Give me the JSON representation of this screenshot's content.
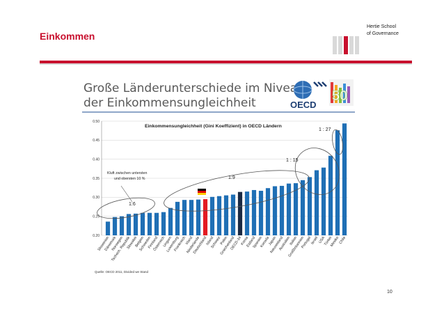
{
  "header": {
    "title": "Einkommen",
    "brand_line1": "Hertie School",
    "brand_line2": "of Governance",
    "page_number": "10"
  },
  "slide": {
    "title_line1": "Große Länderunterschiede im Niveau",
    "title_line2": "der Einkommensungleichheit",
    "logo_text": "OECD",
    "logo_number": "50",
    "source": "Quelle: OECD 2011, Divided we Stand"
  },
  "colors": {
    "accent": "#c8102e",
    "bar": "#1f6fb5",
    "germany": "#e31b23",
    "oecd": "#1a2a44"
  },
  "chart_data": {
    "type": "bar",
    "title": "Einkommensungleichheit (Gini Koeffizient) in OECD Ländern",
    "categories": [
      "Slowenien",
      "Dänemark",
      "Norwegen",
      "Tschech. Republik",
      "Slowakei",
      "Belgien",
      "Schweden",
      "Finnland",
      "Österreich",
      "Ungarn",
      "Luxemburg",
      "Frankreich",
      "Irland",
      "Niederlande",
      "Deutschland",
      "Island",
      "Schweiz",
      "Polen",
      "Griechenland",
      "OECD-34",
      "Korea",
      "Estland",
      "Spanien",
      "Kanada",
      "Japan",
      "Neuseeland",
      "Australien",
      "Italien",
      "Großbritannien",
      "Portugal",
      "Israel",
      "USA",
      "Türkei",
      "Mexiko",
      "Chile"
    ],
    "values": [
      0.236,
      0.248,
      0.25,
      0.256,
      0.257,
      0.259,
      0.259,
      0.259,
      0.261,
      0.272,
      0.288,
      0.293,
      0.293,
      0.294,
      0.295,
      0.301,
      0.303,
      0.305,
      0.307,
      0.314,
      0.315,
      0.319,
      0.317,
      0.324,
      0.329,
      0.33,
      0.336,
      0.337,
      0.345,
      0.353,
      0.371,
      0.378,
      0.409,
      0.476,
      0.494
    ],
    "highlight": {
      "Deutschland": "germany",
      "OECD-34": "oecd"
    },
    "ylim": [
      0.2,
      0.5
    ],
    "yticks": [
      "0.20",
      "0.25",
      "0.30",
      "0.35",
      "0.40",
      "0.45",
      "0.50"
    ],
    "grid": true,
    "annotations": [
      {
        "text": "Kluft zwischen untersten",
        "kind": "note"
      },
      {
        "text": "und obersten 10 %",
        "kind": "note"
      },
      {
        "text": "1:6"
      },
      {
        "text": "1:9"
      },
      {
        "text": "1 : 15"
      },
      {
        "text": "1 : 27"
      }
    ]
  }
}
